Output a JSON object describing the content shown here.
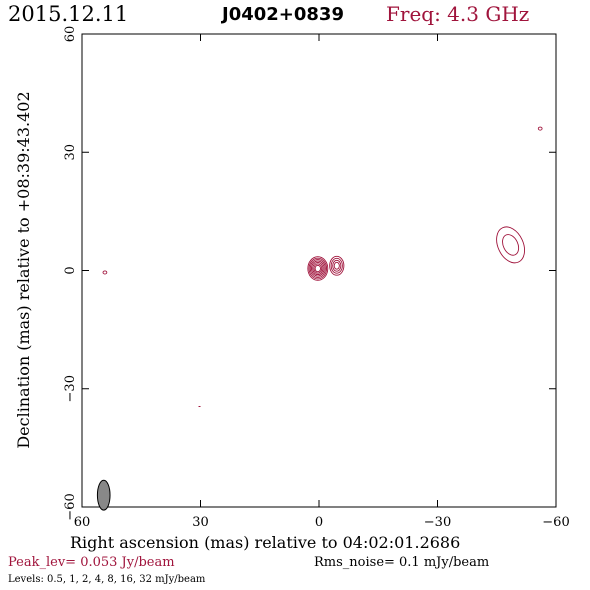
{
  "header": {
    "date": "2015.12.11",
    "source": "J0402+0839",
    "freq": "Freq: 4.3 GHz"
  },
  "footer": {
    "peak": "Peak_lev=  0.053 Jy/beam",
    "rms": "Rms_noise=   0.1 mJy/beam",
    "levels": "Levels: 0.5,    1,    2,    4,    8,   16,   32 mJy/beam"
  },
  "colors": {
    "contour": "#a0143c",
    "accent": "#a0143c",
    "beam": "#888888"
  },
  "chart_data": {
    "type": "contour",
    "xlabel": "Right ascension (mas) relative to 04:02:01.2686",
    "ylabel": "Declination (mas) relative to +08:39:43.402",
    "xlim": [
      60,
      -60
    ],
    "ylim": [
      -60,
      60
    ],
    "xticks": [
      60,
      30,
      0,
      -30,
      -60
    ],
    "yticks": [
      -60,
      -30,
      0,
      30,
      60
    ],
    "xtick_labels": [
      "60",
      "30",
      "0",
      "−30",
      "−60"
    ],
    "ytick_labels": [
      "−60",
      "−30",
      "0",
      "30",
      "60"
    ],
    "levels_mJy": [
      0.5,
      1,
      2,
      4,
      8,
      16,
      32
    ],
    "components": [
      {
        "x": 0.3,
        "y": 0.5,
        "nlevels": 7
      },
      {
        "x": -4.5,
        "y": 1.2,
        "nlevels": 4
      },
      {
        "x": -48.5,
        "y": 6.5,
        "nlevels": 2
      },
      {
        "x": 54.2,
        "y": -0.5,
        "nlevels": 1
      },
      {
        "x": -56.0,
        "y": 36.0,
        "nlevels": 1
      }
    ],
    "beam": {
      "x": 54.5,
      "y": -57.0,
      "major": 3.8,
      "minor": 1.6
    }
  }
}
